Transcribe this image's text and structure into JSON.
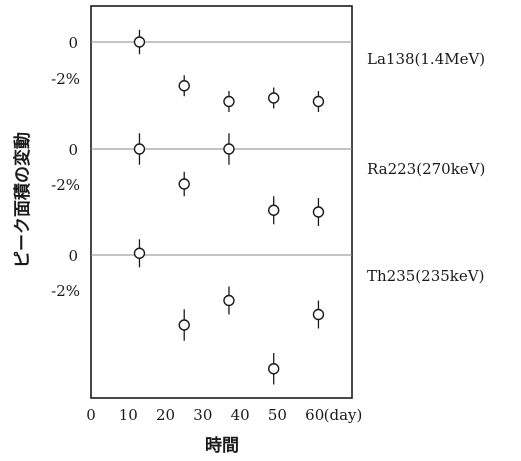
{
  "chart_data": {
    "type": "scatter",
    "xlabel": "時間",
    "ylabel": "ピーク面積の変動",
    "xlim": [
      0,
      70
    ],
    "x_ticks": [
      "0",
      "10",
      "20",
      "30",
      "40",
      "50",
      "60"
    ],
    "x_unit": "(day)",
    "y_unit": "%",
    "panels": [
      {
        "label": "La138(1.4MeV)",
        "y_ticks": [
          "0",
          "-2%"
        ],
        "ylim": [
          -5,
          2
        ],
        "points": [
          {
            "x": 13,
            "y": 0.0,
            "err": 0.7
          },
          {
            "x": 25,
            "y": -2.5,
            "err": 0.6
          },
          {
            "x": 37,
            "y": -3.4,
            "err": 0.6
          },
          {
            "x": 49,
            "y": -3.2,
            "err": 0.6
          },
          {
            "x": 61,
            "y": -3.4,
            "err": 0.6
          }
        ]
      },
      {
        "label": "Ra223(270keV)",
        "y_ticks": [
          "0",
          "-2%"
        ],
        "ylim": [
          -4,
          2
        ],
        "points": [
          {
            "x": 13,
            "y": 0.0,
            "err": 0.9
          },
          {
            "x": 25,
            "y": -2.0,
            "err": 0.7
          },
          {
            "x": 37,
            "y": 0.0,
            "err": 0.9
          },
          {
            "x": 49,
            "y": -3.5,
            "err": 0.8
          },
          {
            "x": 61,
            "y": -3.6,
            "err": 0.8
          }
        ]
      },
      {
        "label": "Th235(235keV)",
        "y_ticks": [
          "0",
          "-2%"
        ],
        "ylim": [
          -8,
          1
        ],
        "points": [
          {
            "x": 13,
            "y": 0.1,
            "err": 0.8
          },
          {
            "x": 25,
            "y": -4.0,
            "err": 0.9
          },
          {
            "x": 37,
            "y": -2.6,
            "err": 0.8
          },
          {
            "x": 49,
            "y": -6.5,
            "err": 0.9
          },
          {
            "x": 61,
            "y": -3.4,
            "err": 0.8
          }
        ]
      }
    ],
    "grid": false,
    "legend": "right"
  }
}
